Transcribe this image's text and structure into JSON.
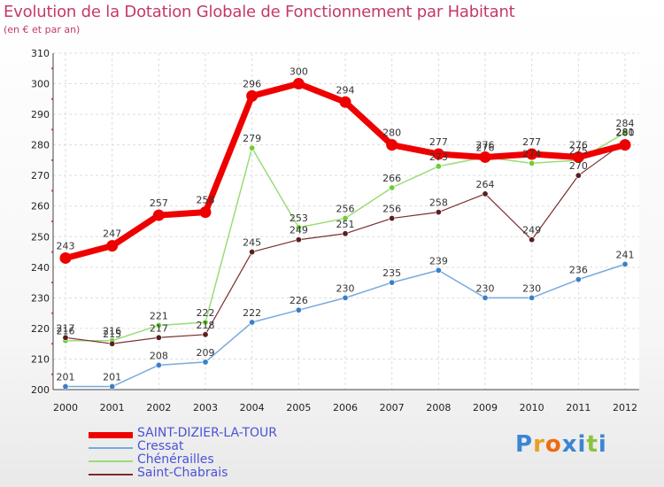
{
  "title": "Evolution de la Dotation Globale de Fonctionnement par Habitant",
  "subtitle": "(en € et par an)",
  "logo": {
    "text": "Proxiti",
    "letters": [
      {
        "ch": "P",
        "color": "#3a86d4"
      },
      {
        "ch": "r",
        "color": "#e8a020"
      },
      {
        "ch": "o",
        "color": "#f06a10"
      },
      {
        "ch": "x",
        "color": "#3a86d4"
      },
      {
        "ch": "i",
        "color": "#3a86d4"
      },
      {
        "ch": "t",
        "color": "#8bc43a"
      },
      {
        "ch": "i",
        "color": "#3a86d4"
      }
    ]
  },
  "chart_data": {
    "type": "line",
    "x": [
      "2000",
      "2001",
      "2002",
      "2003",
      "2004",
      "2005",
      "2006",
      "2007",
      "2008",
      "2009",
      "2010",
      "2011",
      "2012"
    ],
    "ylim": [
      200,
      310
    ],
    "yticks": [
      200,
      210,
      220,
      230,
      240,
      250,
      260,
      270,
      280,
      290,
      300,
      310
    ],
    "grid": true,
    "legend": "bottom-left",
    "series": [
      {
        "name": "SAINT-DIZIER-LA-TOUR",
        "color": "#ee0000",
        "marker": "#ee0000",
        "width": 7,
        "values": [
          243,
          247,
          257,
          258,
          296,
          300,
          294,
          280,
          277,
          276,
          277,
          276,
          280
        ]
      },
      {
        "name": "Cressat",
        "color": "#77aadd",
        "marker": "#3a7fc4",
        "width": 1.5,
        "values": [
          201,
          201,
          208,
          209,
          222,
          226,
          230,
          235,
          239,
          230,
          230,
          236,
          241
        ]
      },
      {
        "name": "Chénérailles",
        "color": "#99dd77",
        "marker": "#6fcc33",
        "width": 1.5,
        "values": [
          216,
          216,
          221,
          222,
          279,
          253,
          256,
          266,
          273,
          276,
          274,
          275,
          284
        ]
      },
      {
        "name": "Saint-Chabrais",
        "color": "#7a2e2e",
        "marker": "#5a1e1e",
        "width": 1.2,
        "values": [
          217,
          215,
          217,
          218,
          245,
          249,
          251,
          256,
          258,
          264,
          249,
          270,
          281
        ]
      }
    ]
  }
}
